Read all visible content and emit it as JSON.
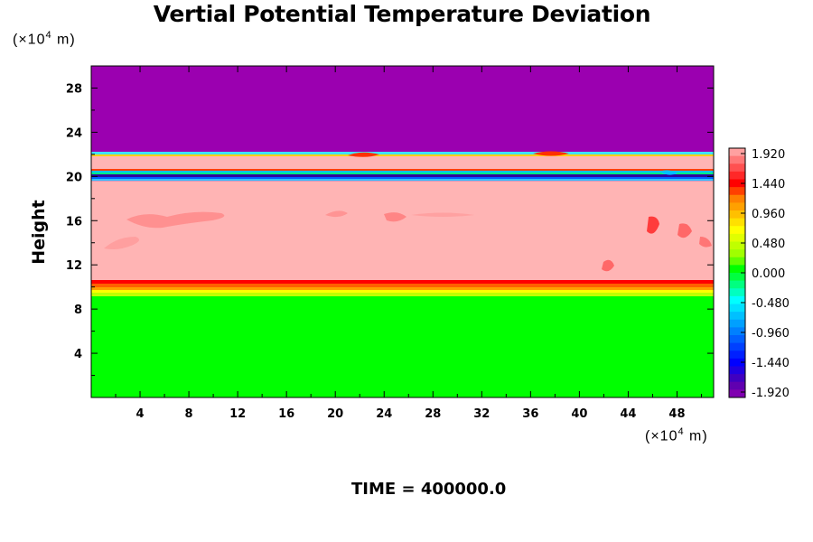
{
  "chart_data": {
    "type": "heatmap",
    "title": "Vertial Potential Temperature Deviation",
    "ylabel": "Height",
    "xlabel": "",
    "x_unit_label": "(×10",
    "x_unit_exp": "4",
    "x_unit_tail": " m)",
    "y_unit_label": "(×10",
    "y_unit_exp": "4",
    "y_unit_tail": " m)",
    "xlim": [
      0,
      51
    ],
    "ylim": [
      0,
      30
    ],
    "x_ticks": [
      "4",
      "8",
      "12",
      "16",
      "20",
      "24",
      "28",
      "32",
      "36",
      "40",
      "44",
      "48"
    ],
    "y_ticks": [
      "4",
      "8",
      "12",
      "16",
      "20",
      "24",
      "28"
    ],
    "x_tick_values": [
      4,
      8,
      12,
      16,
      20,
      24,
      28,
      32,
      36,
      40,
      44,
      48
    ],
    "y_tick_values": [
      4,
      8,
      12,
      16,
      20,
      24,
      28
    ],
    "bands": [
      {
        "y_from": 0,
        "y_to": 9.5,
        "value": 0.0,
        "color": "#00ff00"
      },
      {
        "y_from": 9.5,
        "y_to": 10.0,
        "value": 1.2,
        "color": "#ffff00"
      },
      {
        "y_from": 10.0,
        "y_to": 10.6,
        "value": 1.6,
        "color": "#ff2020"
      },
      {
        "y_from": 10.6,
        "y_to": 19.6,
        "value": 2.0,
        "color": "#ffb4b4"
      },
      {
        "y_from": 19.6,
        "y_to": 20.1,
        "value": -1.9,
        "color": "#6000a0"
      },
      {
        "y_from": 20.1,
        "y_to": 20.5,
        "value": 0.5,
        "color": "#00e080"
      },
      {
        "y_from": 20.5,
        "y_to": 22.1,
        "value": 2.0,
        "color": "#ffb4b4"
      },
      {
        "y_from": 22.1,
        "y_to": 30,
        "value": -2.0,
        "color": "#9b00b0"
      }
    ],
    "colorbar": {
      "labels": [
        "1.920",
        "1.440",
        "0.960",
        "0.480",
        "0.000",
        "-0.480",
        "-0.960",
        "-1.440",
        "-1.920"
      ],
      "values": [
        1.92,
        1.44,
        0.96,
        0.48,
        0.0,
        -0.48,
        -0.96,
        -1.44,
        -1.92
      ],
      "colors_top_to_bottom": [
        "#ffa0a0",
        "#ff7878",
        "#ff5050",
        "#ff2828",
        "#ff0000",
        "#ff4000",
        "#ff8000",
        "#ffa000",
        "#ffc000",
        "#ffe000",
        "#ffff00",
        "#e0ff00",
        "#c0ff00",
        "#a0ff00",
        "#60ff00",
        "#00ff00",
        "#00ff40",
        "#00ff80",
        "#00ffc0",
        "#00ffff",
        "#00e0ff",
        "#00c0ff",
        "#00a0ff",
        "#0080ff",
        "#0060ff",
        "#0040ff",
        "#0020ff",
        "#0000ff",
        "#2000e0",
        "#4000c0",
        "#6000b0",
        "#8000b0"
      ]
    }
  },
  "footer": {
    "time_label": "TIME = ",
    "time_value": "400000.0"
  }
}
